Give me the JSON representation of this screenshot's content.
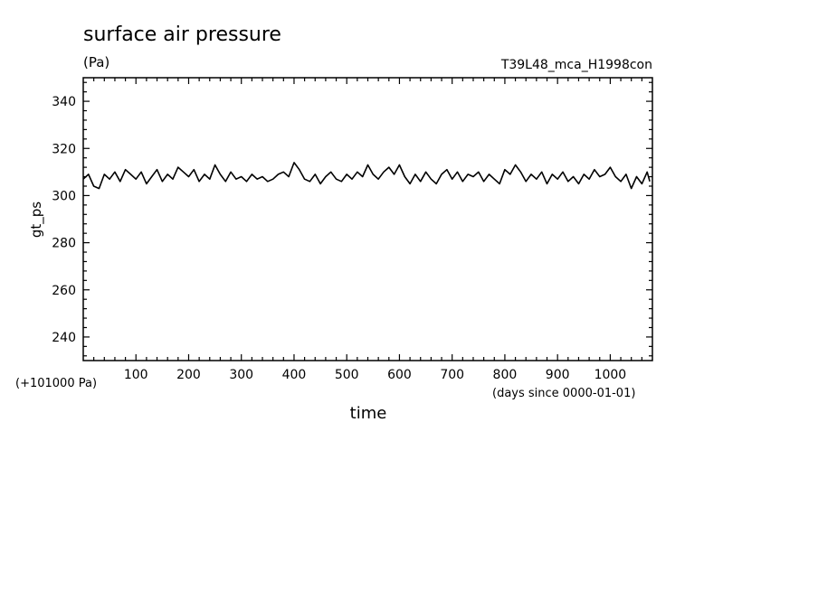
{
  "chart_data": {
    "type": "line",
    "title": "surface air pressure",
    "units": "(Pa)",
    "run_label": "T39L48_mca_H1998con",
    "xlabel": "time",
    "xlabel_units": "(days since 0000-01-01)",
    "ylabel": "gt_ps",
    "offset_label": "(+101000 Pa)",
    "xlim": [
      0,
      1080
    ],
    "ylim": [
      230,
      350
    ],
    "x_ticks": [
      100,
      200,
      300,
      400,
      500,
      600,
      700,
      800,
      900,
      1000
    ],
    "x_tick_labels": [
      "100",
      "200",
      "300",
      "400",
      "500",
      "600",
      "700",
      "800",
      "900",
      "1000"
    ],
    "y_ticks": [
      240,
      260,
      280,
      300,
      320,
      340
    ],
    "y_tick_labels": [
      "240",
      "260",
      "280",
      "300",
      "320",
      "340"
    ],
    "grid": false,
    "line_color": "#000000",
    "series": [
      {
        "x": [
          0,
          10,
          20,
          30,
          40,
          50,
          60,
          70,
          80,
          90,
          100,
          110,
          120,
          130,
          140,
          150,
          160,
          170,
          180,
          190,
          200,
          210,
          220,
          230,
          240,
          250,
          260,
          270,
          280,
          290,
          300,
          310,
          320,
          330,
          340,
          350,
          360,
          370,
          380,
          390,
          400,
          410,
          420,
          430,
          440,
          450,
          460,
          470,
          480,
          490,
          500,
          510,
          520,
          530,
          540,
          550,
          560,
          570,
          580,
          590,
          600,
          610,
          620,
          630,
          640,
          650,
          660,
          670,
          680,
          690,
          700,
          710,
          720,
          730,
          740,
          750,
          760,
          770,
          780,
          790,
          800,
          810,
          820,
          830,
          840,
          850,
          860,
          870,
          880,
          890,
          900,
          910,
          920,
          930,
          940,
          950,
          960,
          970,
          980,
          990,
          1000,
          1010,
          1020,
          1030,
          1040,
          1050,
          1060,
          1070,
          1075
        ],
        "values": [
          307,
          309,
          304,
          303,
          309,
          307,
          310,
          306,
          311,
          309,
          307,
          310,
          305,
          308,
          311,
          306,
          309,
          307,
          312,
          310,
          308,
          311,
          306,
          309,
          307,
          313,
          309,
          306,
          310,
          307,
          308,
          306,
          309,
          307,
          308,
          306,
          307,
          309,
          310,
          308,
          314,
          311,
          307,
          306,
          309,
          305,
          308,
          310,
          307,
          306,
          309,
          307,
          310,
          308,
          313,
          309,
          307,
          310,
          312,
          309,
          313,
          308,
          305,
          309,
          306,
          310,
          307,
          305,
          309,
          311,
          307,
          310,
          306,
          309,
          308,
          310,
          306,
          309,
          307,
          305,
          311,
          309,
          313,
          310,
          306,
          309,
          307,
          310,
          305,
          309,
          307,
          310,
          306,
          308,
          305,
          309,
          307,
          311,
          308,
          309,
          312,
          308,
          306,
          309,
          303,
          308,
          305,
          310,
          306
        ]
      }
    ]
  }
}
